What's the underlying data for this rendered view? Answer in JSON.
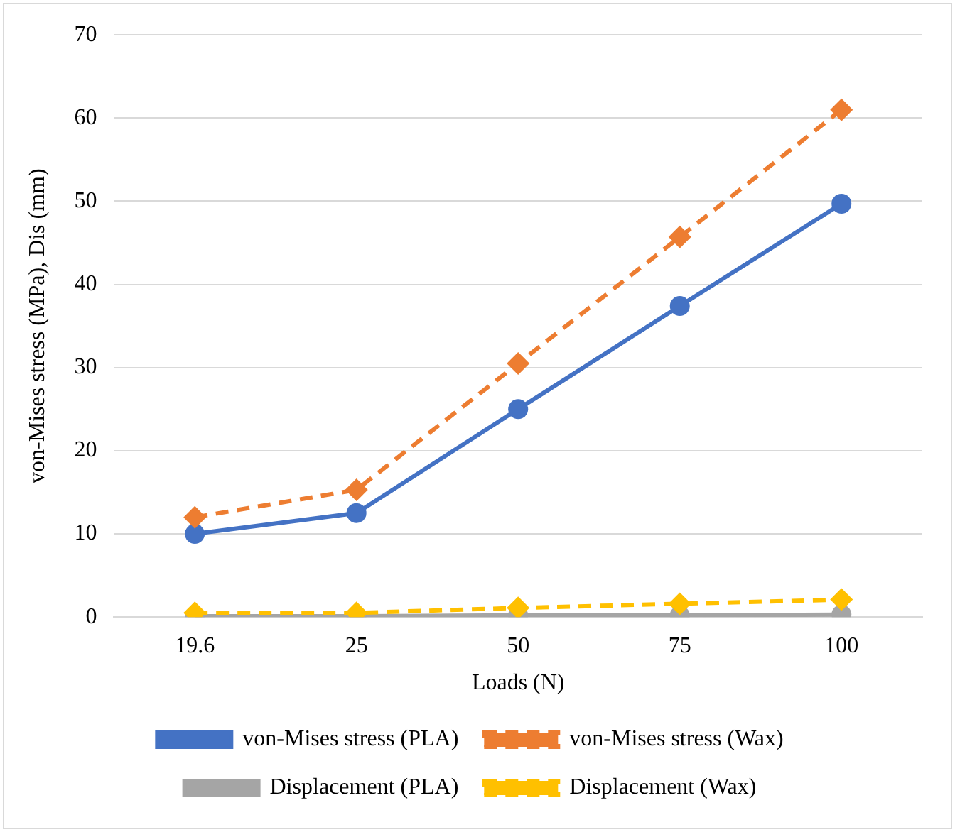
{
  "chart_data": {
    "type": "line",
    "xlabel": "Loads (N)",
    "ylabel": "von-Mises stress (MPa), Dis (mm)",
    "categories": [
      "19.6",
      "25",
      "50",
      "75",
      "100"
    ],
    "ylim": [
      0,
      70
    ],
    "yticks": [
      0,
      10,
      20,
      30,
      40,
      50,
      60,
      70
    ],
    "grid": "y",
    "legend": "bottom",
    "series": [
      {
        "name": "von-Mises stress (PLA)",
        "color": "#4472c4",
        "marker": "circle",
        "line_style": "solid",
        "values": [
          10,
          12.5,
          25,
          37.4,
          49.7
        ]
      },
      {
        "name": "von-Mises stress (Wax)",
        "color": "#ed7d31",
        "marker": "diamond",
        "line_style": "dashed",
        "values": [
          12,
          15.3,
          30.5,
          45.7,
          61
        ]
      },
      {
        "name": "Displacement (PLA)",
        "color": "#a5a5a5",
        "marker": "circle",
        "line_style": "solid",
        "values": [
          0.1,
          0.1,
          0.2,
          0.2,
          0.3
        ]
      },
      {
        "name": "Displacement (Wax)",
        "color": "#ffc000",
        "marker": "diamond",
        "line_style": "dashed",
        "values": [
          0.5,
          0.5,
          1.1,
          1.6,
          2.1
        ]
      }
    ]
  }
}
